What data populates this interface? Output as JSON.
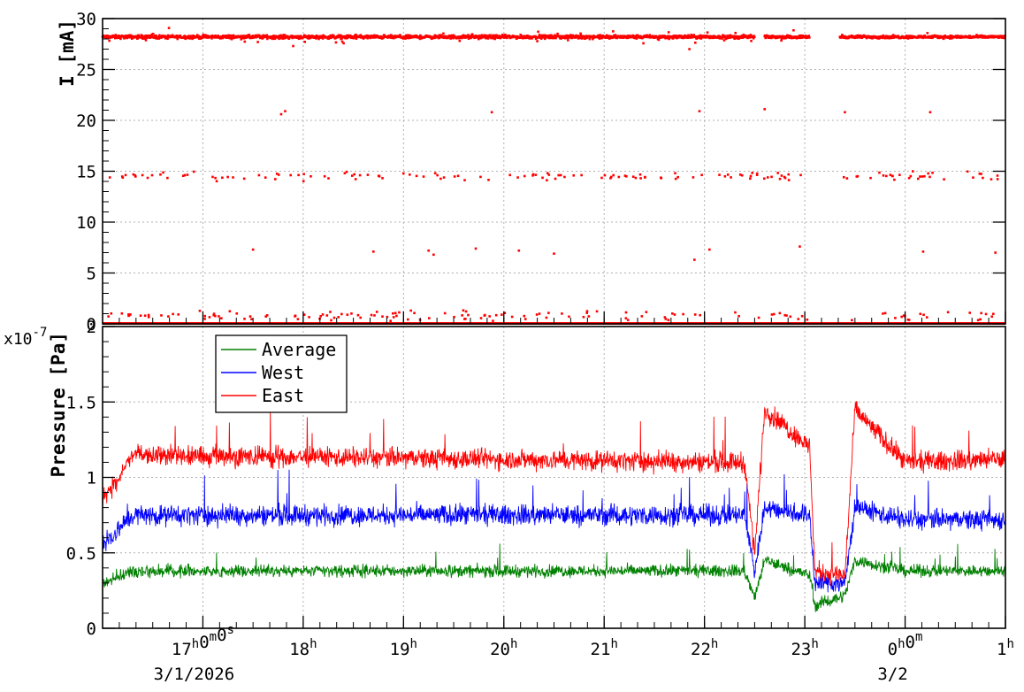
{
  "chart_data": [
    {
      "type": "scatter",
      "ylabel": "I [mA]",
      "ylim": [
        0,
        30
      ],
      "yticks": [
        "0",
        "5",
        "10",
        "15",
        "20",
        "25",
        "30"
      ],
      "xlim_hours": [
        16,
        25
      ],
      "grid": true,
      "color": "#ff0000",
      "series": [
        {
          "name": "",
          "bands": [
            {
              "level": 28.2,
              "from_hour": 16.0,
              "to_hour": 22.5,
              "spread": 0.25
            },
            {
              "level": 28.2,
              "from_hour": 22.6,
              "to_hour": 23.05,
              "spread": 0.2
            },
            {
              "level": 28.2,
              "from_hour": 23.35,
              "to_hour": 25.0,
              "spread": 0.2
            },
            {
              "level": 0.0,
              "from_hour": 16.0,
              "to_hour": 25.0,
              "spread": 0.0
            }
          ],
          "scatter_levels": [
            {
              "level": 14.5,
              "count": 150,
              "spread": 0.5
            },
            {
              "level": 0.8,
              "count": 140,
              "spread": 0.6
            }
          ],
          "outliers": [
            [
              17.78,
              20.6
            ],
            [
              17.82,
              20.9
            ],
            [
              19.88,
              20.8
            ],
            [
              21.95,
              20.9
            ],
            [
              22.6,
              21.1
            ],
            [
              23.4,
              20.8
            ],
            [
              24.25,
              20.8
            ],
            [
              17.5,
              7.3
            ],
            [
              18.7,
              7.1
            ],
            [
              19.25,
              7.2
            ],
            [
              19.3,
              6.8
            ],
            [
              19.72,
              7.4
            ],
            [
              20.15,
              7.2
            ],
            [
              20.5,
              6.9
            ],
            [
              21.9,
              6.3
            ],
            [
              22.05,
              7.3
            ],
            [
              22.95,
              7.6
            ],
            [
              24.18,
              7.1
            ],
            [
              24.9,
              7.0
            ],
            [
              21.85,
              27.0
            ],
            [
              17.9,
              27.3
            ]
          ]
        }
      ]
    },
    {
      "type": "line",
      "ylabel": "Pressure [Pa]",
      "yexponent": "x10-7",
      "ylim": [
        0,
        2
      ],
      "yticks": [
        "0",
        "0.5",
        "1",
        "1.5",
        "2"
      ],
      "xlim_hours": [
        16,
        25
      ],
      "xticks": [
        {
          "hour": 17,
          "label": "17h0m0s"
        },
        {
          "hour": 18,
          "label": "18h"
        },
        {
          "hour": 19,
          "label": "19h"
        },
        {
          "hour": 20,
          "label": "20h"
        },
        {
          "hour": 21,
          "label": "21h"
        },
        {
          "hour": 22,
          "label": "22h"
        },
        {
          "hour": 23,
          "label": "23h"
        },
        {
          "hour": 24,
          "label": "0h0m"
        },
        {
          "hour": 25,
          "label": "1h"
        }
      ],
      "date_labels": [
        "3/1/2026",
        "3/2"
      ],
      "grid": true,
      "legend_position": "top-left",
      "series": [
        {
          "name": "Average",
          "color": "#008000",
          "segments": [
            [
              16.0,
              0.3
            ],
            [
              16.3,
              0.38
            ],
            [
              22.4,
              0.38
            ],
            [
              22.5,
              0.2
            ],
            [
              22.6,
              0.45
            ],
            [
              23.05,
              0.35
            ],
            [
              23.1,
              0.15
            ],
            [
              23.4,
              0.22
            ],
            [
              23.5,
              0.45
            ],
            [
              24.0,
              0.38
            ],
            [
              25.0,
              0.38
            ]
          ],
          "noise": 0.06
        },
        {
          "name": "West",
          "color": "#0000ff",
          "segments": [
            [
              16.0,
              0.55
            ],
            [
              16.3,
              0.75
            ],
            [
              22.4,
              0.75
            ],
            [
              22.5,
              0.38
            ],
            [
              22.6,
              0.8
            ],
            [
              23.05,
              0.75
            ],
            [
              23.1,
              0.3
            ],
            [
              23.4,
              0.3
            ],
            [
              23.5,
              0.8
            ],
            [
              24.0,
              0.72
            ],
            [
              25.0,
              0.72
            ]
          ],
          "noise": 0.1
        },
        {
          "name": "East",
          "color": "#ff0000",
          "segments": [
            [
              16.0,
              0.85
            ],
            [
              16.3,
              1.15
            ],
            [
              22.4,
              1.1
            ],
            [
              22.5,
              0.5
            ],
            [
              22.6,
              1.45
            ],
            [
              23.05,
              1.2
            ],
            [
              23.1,
              0.38
            ],
            [
              23.4,
              0.35
            ],
            [
              23.5,
              1.45
            ],
            [
              24.0,
              1.1
            ],
            [
              25.0,
              1.12
            ]
          ],
          "noise": 0.1
        }
      ]
    }
  ]
}
